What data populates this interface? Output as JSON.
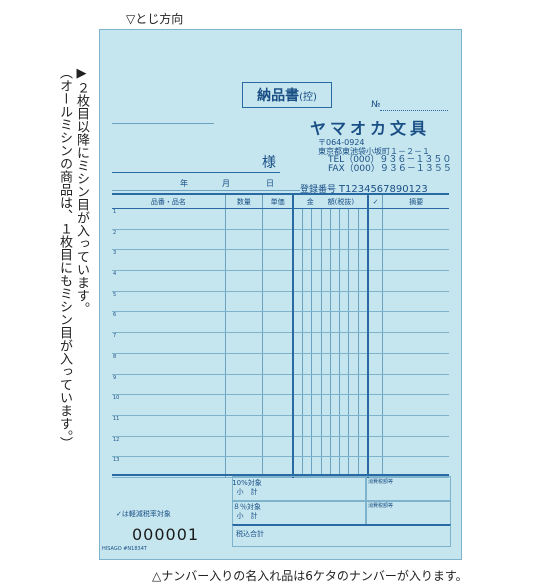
{
  "binding_direction": "▽とじ方向",
  "notes": {
    "line1": "▶２枚目以降にミシン目が入っています。",
    "line2": "（オールミシンの商品は、１枚目にもミシン目が入っています。）",
    "bottom": "△ナンバー入りの名入れ品は6ケタのナンバーが入ります。"
  },
  "form": {
    "title": "納品書",
    "title_suffix": "(控)",
    "no_label": "№",
    "company": "ヤマオカ文具",
    "postal": "〒064-0924",
    "address": "東京都東池袋小坂町１－２－１",
    "tel": "TEL（000）９３６－１３５０",
    "fax": "FAX（000）９３６－１３５５",
    "sama": "様",
    "date_year": "年",
    "date_month": "月",
    "date_day": "日",
    "reg_label": "登録番号",
    "reg_number": "T1234567890123",
    "columns": [
      "品番・品名",
      "数量",
      "単価",
      "金　　額(税抜)",
      "✓",
      "摘要"
    ],
    "row_numbers": [
      "1",
      "2",
      "3",
      "4",
      "5",
      "6",
      "7",
      "8",
      "9",
      "10",
      "11",
      "12",
      "13"
    ],
    "summary": {
      "ten_target": "10%対象",
      "ten_subtotal": "小　計",
      "eight_target": "８％対象",
      "eight_subtotal": "小　計",
      "tax_ten": "消費税額等",
      "tax_eight": "消費税額等",
      "keigen": "✓は軽減税率対象",
      "total": "税込合計"
    },
    "serial": "000001",
    "brand": "HISAGO #N1834T"
  }
}
